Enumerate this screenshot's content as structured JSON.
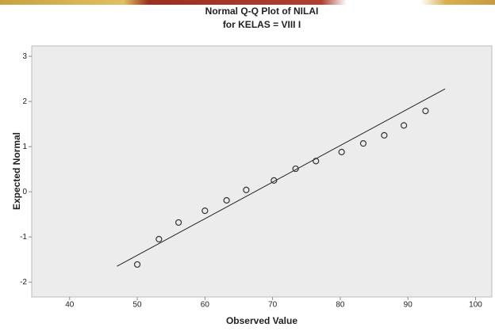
{
  "chart_data": {
    "type": "scatter",
    "title": "Normal Q-Q Plot of NILAI",
    "subtitle": "for KELAS = VIII I",
    "x_label": "Observed Value",
    "y_label": "Expected Normal",
    "x": [
      50,
      53.2,
      56.1,
      60,
      63.2,
      66.1,
      70.2,
      73.4,
      76.4,
      80.2,
      83.4,
      86.5,
      89.4,
      92.6
    ],
    "values": [
      -1.61,
      -1.05,
      -0.68,
      -0.42,
      -0.19,
      0.04,
      0.25,
      0.51,
      0.68,
      0.88,
      1.07,
      1.25,
      1.47,
      1.79
    ],
    "color": "#333333",
    "reference_line": {
      "x": [
        47,
        95.5
      ],
      "y": [
        -1.65,
        2.28
      ]
    },
    "xlim": [
      34.4,
      102.4
    ],
    "xticks": [
      40,
      50,
      60,
      70,
      80,
      90,
      100
    ],
    "ylim": [
      -2.33,
      3.23
    ],
    "yticks": [
      -2,
      -1,
      0,
      1,
      2,
      3
    ],
    "grid": false
  }
}
